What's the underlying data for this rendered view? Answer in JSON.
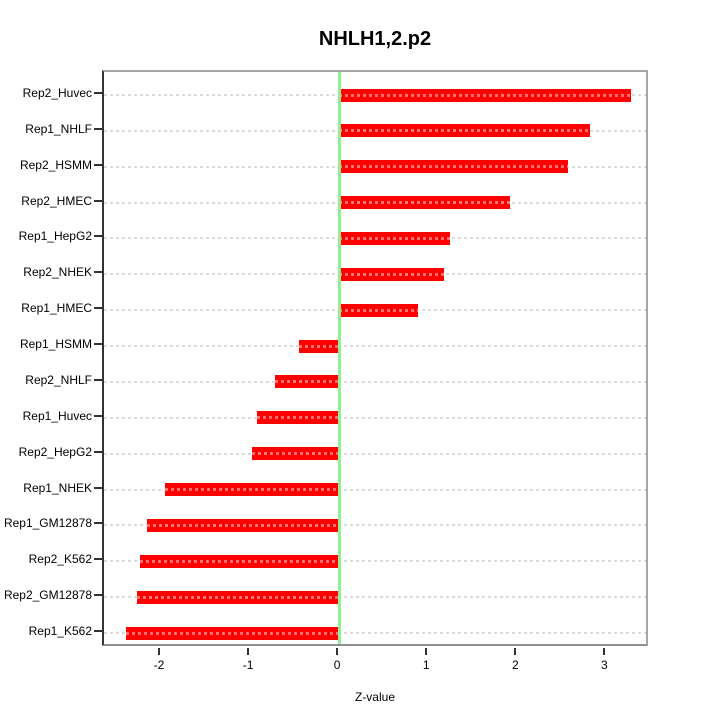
{
  "chart_data": {
    "type": "bar",
    "orientation": "horizontal",
    "title": "NHLH1,2.p2",
    "xlabel": "Z-value",
    "ylabel": "",
    "categories": [
      "Rep2_Huvec",
      "Rep1_NHLF",
      "Rep2_HSMM",
      "Rep2_HMEC",
      "Rep1_HepG2",
      "Rep2_NHEK",
      "Rep1_HMEC",
      "Rep1_HSMM",
      "Rep2_NHLF",
      "Rep1_Huvec",
      "Rep2_HepG2",
      "Rep1_NHEK",
      "Rep1_GM12878",
      "Rep2_K562",
      "Rep2_GM12878",
      "Rep1_K562"
    ],
    "values": [
      3.28,
      2.82,
      2.57,
      1.92,
      1.25,
      1.18,
      0.89,
      -0.45,
      -0.72,
      -0.92,
      -0.98,
      -1.95,
      -2.16,
      -2.24,
      -2.27,
      -2.39
    ],
    "xticks": [
      -2,
      -1,
      0,
      1,
      2,
      3
    ],
    "xtick_labels": [
      "-2",
      "-1",
      "0",
      "1",
      "2",
      "3"
    ],
    "xlim": [
      -2.64,
      3.49
    ],
    "grid": true,
    "legend": false,
    "colors": {
      "bar": "#FF0000",
      "bar_grid_overlay": "rgba(255,255,255,0.45)",
      "zero_line": "#90EE90",
      "grid_line": "#DBDBDB",
      "axis_dark": "#333333",
      "box_gray": "#A6A6A6",
      "text": "#000000",
      "background": "#FFFFFF"
    }
  }
}
